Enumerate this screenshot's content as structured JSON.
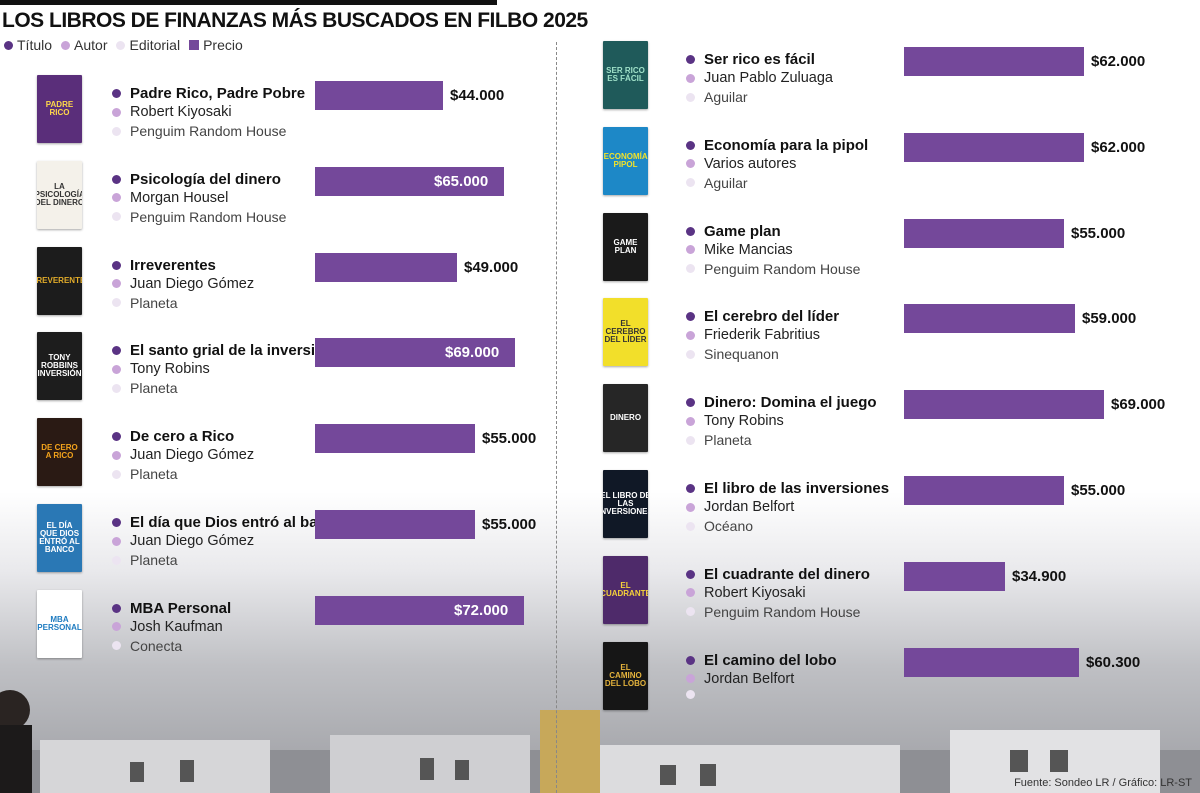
{
  "title": "LOS LIBROS DE FINANZAS MÁS BUSCADOS EN FILBO 2025",
  "legend": [
    {
      "label": "Título",
      "color": "#5a3384",
      "shape": "dot"
    },
    {
      "label": "Autor",
      "color": "#c9a4d8",
      "shape": "dot"
    },
    {
      "label": "Editorial",
      "color": "#ece4f1",
      "shape": "dot"
    },
    {
      "label": "Precio",
      "color": "#74489a",
      "shape": "square"
    }
  ],
  "source": "Fuente: Sondeo LR / Gráfico: LR-ST",
  "colors": {
    "bar": "#74489a",
    "title_dot": "#5a3384",
    "author_dot": "#c9a4d8",
    "publisher_dot": "#ece4f1"
  },
  "books": [
    {
      "title": "Padre Rico, Padre Pobre",
      "author": "Robert Kiyosaki",
      "publisher": "Penguim Random House",
      "price_label": "$44.000",
      "price": 44000,
      "cover_text": "PADRE RICO",
      "cover_bg": "#5a2e7a",
      "cover_fg": "#ffd84a"
    },
    {
      "title": "Psicología del dinero",
      "author": "Morgan Housel",
      "publisher": "Penguim Random House",
      "price_label": "$65.000",
      "price": 65000,
      "cover_text": "LA PSICOLOGÍA DEL DINERO",
      "cover_bg": "#f4f1ea",
      "cover_fg": "#333333"
    },
    {
      "title": "Irreverentes",
      "author": "Juan Diego Gómez",
      "publisher": "Planeta",
      "price_label": "$49.000",
      "price": 49000,
      "cover_text": "IRREVERENTES",
      "cover_bg": "#1c1c1c",
      "cover_fg": "#e2ac2a"
    },
    {
      "title": "El santo grial de la inversión",
      "author": "Tony Robins",
      "publisher": "Planeta",
      "price_label": "$69.000",
      "price": 69000,
      "cover_text": "TONY ROBBINS INVERSIÓN",
      "cover_bg": "#1d1d1d",
      "cover_fg": "#ffffff"
    },
    {
      "title": "De cero a Rico",
      "author": "Juan Diego Gómez",
      "publisher": "Planeta",
      "price_label": "$55.000",
      "price": 55000,
      "cover_text": "DE CERO A RICO",
      "cover_bg": "#2a1a14",
      "cover_fg": "#f3a31c"
    },
    {
      "title": "El día que Dios entró al banco",
      "author": "Juan Diego Gómez",
      "publisher": "Planeta",
      "price_label": "$55.000",
      "price": 55000,
      "cover_text": "EL DÍA QUE DIOS ENTRÓ AL BANCO",
      "cover_bg": "#2a78b5",
      "cover_fg": "#ffffff"
    },
    {
      "title": "MBA Personal",
      "author": "Josh Kaufman",
      "publisher": "Conecta",
      "price_label": "$72.000",
      "price": 72000,
      "cover_text": "MBA PERSONAL",
      "cover_bg": "#ffffff",
      "cover_fg": "#1e7bc0"
    },
    {
      "title": "Ser rico es fácil",
      "author": "Juan Pablo Zuluaga",
      "publisher": "Aguilar",
      "price_label": "$62.000",
      "price": 62000,
      "cover_text": "SER RICO ES FÁCIL",
      "cover_bg": "#1f5a5a",
      "cover_fg": "#9fe0c8"
    },
    {
      "title": "Economía para la pipol",
      "author": "Varios autores",
      "publisher": "Aguilar",
      "price_label": "$62.000",
      "price": 62000,
      "cover_text": "ECONOMÍA PIPOL",
      "cover_bg": "#1d88c7",
      "cover_fg": "#f2e22a"
    },
    {
      "title": "Game plan",
      "author": "Mike Mancias",
      "publisher": "Penguim Random House",
      "price_label": "$55.000",
      "price": 55000,
      "cover_text": "GAME PLAN",
      "cover_bg": "#1a1a1a",
      "cover_fg": "#ffffff"
    },
    {
      "title": "El cerebro del líder",
      "author": "Friederik Fabritius",
      "publisher": "Sinequanon",
      "price_label": "$59.000",
      "price": 59000,
      "cover_text": "EL CEREBRO DEL LÍDER",
      "cover_bg": "#f2df2a",
      "cover_fg": "#333333"
    },
    {
      "title": "Dinero: Domina el juego",
      "author": "Tony Robins",
      "publisher": "Planeta",
      "price_label": "$69.000",
      "price": 69000,
      "cover_text": "DINERO",
      "cover_bg": "#262626",
      "cover_fg": "#ffffff"
    },
    {
      "title": "El libro de las inversiones",
      "author": "Jordan Belfort",
      "publisher": "Océano",
      "price_label": "$55.000",
      "price": 55000,
      "cover_text": "EL LIBRO DE LAS INVERSIONES",
      "cover_bg": "#101826",
      "cover_fg": "#ffffff"
    },
    {
      "title": "El cuadrante del dinero",
      "author": "Robert Kiyosaki",
      "publisher": "Penguim Random House",
      "price_label": "$34.900",
      "price": 34900,
      "cover_text": "EL CUADRANTE",
      "cover_bg": "#4e2a6a",
      "cover_fg": "#f5d23a"
    },
    {
      "title": "El camino del lobo",
      "author": "Jordan Belfort",
      "publisher": "",
      "price_label": "$60.300",
      "price": 60300,
      "cover_text": "EL CAMINO DEL LOBO",
      "cover_bg": "#161616",
      "cover_fg": "#e3b23c"
    }
  ],
  "chart_data": {
    "type": "bar",
    "title": "LOS LIBROS DE FINANZAS MÁS BUSCADOS EN FILBO 2025",
    "categories": [
      "Padre Rico, Padre Pobre",
      "Psicología del dinero",
      "Irreverentes",
      "El santo grial de la inversión",
      "De cero a Rico",
      "El día que Dios entró al banco",
      "MBA Personal",
      "Ser rico es fácil",
      "Economía para la pipol",
      "Game plan",
      "El cerebro del líder",
      "Dinero: Domina el juego",
      "El libro de las inversiones",
      "El cuadrante del dinero",
      "El camino del lobo"
    ],
    "series": [
      {
        "name": "Precio",
        "values": [
          44000,
          65000,
          49000,
          69000,
          55000,
          55000,
          72000,
          62000,
          62000,
          55000,
          59000,
          69000,
          55000,
          34900,
          60300
        ]
      }
    ],
    "data_labels": [
      "$44.000",
      "$65.000",
      "$49.000",
      "$69.000",
      "$55.000",
      "$55.000",
      "$72.000",
      "$62.000",
      "$62.000",
      "$55.000",
      "$59.000",
      "$69.000",
      "$55.000",
      "$34.900",
      "$60.300"
    ],
    "xlabel": "",
    "ylabel": "",
    "grid": false,
    "legend_position": "top-left"
  }
}
